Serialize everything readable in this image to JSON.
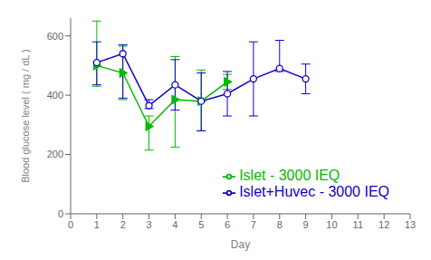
{
  "chart_data": {
    "type": "line",
    "xlabel": "Day",
    "ylabel": "Blood glucose level ( mg / dL )",
    "x": [
      1,
      2,
      3,
      4,
      5,
      6,
      7,
      8,
      9
    ],
    "series": [
      {
        "name": "Islet - 3000 IEQ",
        "color": "#00BB00",
        "marker": "triangle-right",
        "values": [
          500,
          475,
          295,
          385,
          380,
          445,
          null,
          null,
          null
        ],
        "error_low": [
          70,
          90,
          80,
          160,
          100,
          25,
          null,
          null,
          null
        ],
        "error_high": [
          150,
          90,
          35,
          145,
          105,
          25,
          null,
          null,
          null
        ]
      },
      {
        "name": "Islet+Huvec - 3000 IEQ",
        "color": "#1100CC",
        "marker": "circle",
        "values": [
          510,
          540,
          365,
          435,
          380,
          405,
          455,
          490,
          455
        ],
        "error_low": [
          75,
          150,
          10,
          85,
          100,
          75,
          125,
          10,
          50
        ],
        "error_high": [
          70,
          30,
          20,
          85,
          95,
          75,
          125,
          95,
          50
        ]
      }
    ],
    "xlim": [
      0,
      13
    ],
    "ylim": [
      0,
      660
    ],
    "xticks": [
      0,
      1,
      2,
      3,
      4,
      5,
      6,
      7,
      8,
      9,
      10,
      11,
      12,
      13
    ],
    "yticks": [
      0,
      200,
      400,
      600
    ],
    "grid": false,
    "legend": "lower right"
  }
}
